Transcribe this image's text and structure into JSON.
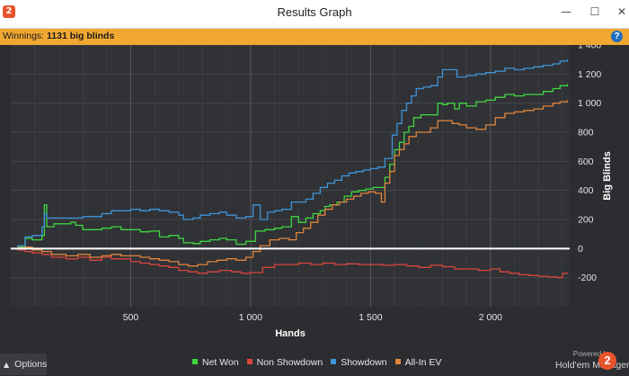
{
  "window": {
    "title": "Results Graph",
    "minimize": "—",
    "maximize": "☐",
    "close": "✕",
    "icon": "hm2-logo-icon",
    "icon_glyph": "2"
  },
  "winnings": {
    "label": "Winnings:",
    "value": "1131 big blinds",
    "help_glyph": "?"
  },
  "footer": {
    "options_label": "Options",
    "options_caret": "▲",
    "powered_by": "Powered by",
    "brand": "Hold'em Manager",
    "brand_glyph": "2"
  },
  "colors": {
    "background": "#2b2d30",
    "plot_background": "#303236",
    "winnings_bar": "#f1a832",
    "net_won": "#3fd63f",
    "non_showdown": "#d9453b",
    "showdown": "#3f94d9",
    "all_in_ev": "#e0843a",
    "zero_line": "#ffffff"
  },
  "chart_data": {
    "type": "line",
    "xlabel": "Hands",
    "ylabel": "Big Blinds",
    "xlim": [
      0,
      2330
    ],
    "ylim": [
      -400,
      1400
    ],
    "x_ticks": [
      500,
      1000,
      1500,
      2000
    ],
    "x_tick_labels": [
      "500",
      "1 000",
      "1 500",
      "2 000"
    ],
    "y_ticks": [
      -200,
      0,
      200,
      400,
      600,
      800,
      1000,
      1200,
      1400
    ],
    "y_tick_labels": [
      "-200",
      "0",
      "200",
      "400",
      "600",
      "800",
      "1 000",
      "1 200",
      "1 400"
    ],
    "grid": true,
    "legend_position": "bottom",
    "series": [
      {
        "name": "Net Won",
        "color": "#3fd63f",
        "points": [
          [
            0,
            0
          ],
          [
            30,
            10
          ],
          [
            60,
            70
          ],
          [
            90,
            60
          ],
          [
            130,
            90
          ],
          [
            140,
            300
          ],
          [
            150,
            150
          ],
          [
            180,
            170
          ],
          [
            250,
            180
          ],
          [
            270,
            160
          ],
          [
            300,
            130
          ],
          [
            330,
            130
          ],
          [
            380,
            140
          ],
          [
            420,
            150
          ],
          [
            460,
            130
          ],
          [
            500,
            130
          ],
          [
            540,
            115
          ],
          [
            580,
            120
          ],
          [
            620,
            80
          ],
          [
            660,
            90
          ],
          [
            700,
            70
          ],
          [
            720,
            40
          ],
          [
            760,
            35
          ],
          [
            790,
            50
          ],
          [
            830,
            60
          ],
          [
            870,
            70
          ],
          [
            900,
            60
          ],
          [
            940,
            30
          ],
          [
            980,
            50
          ],
          [
            1020,
            120
          ],
          [
            1060,
            130
          ],
          [
            1100,
            140
          ],
          [
            1130,
            150
          ],
          [
            1150,
            150
          ],
          [
            1170,
            220
          ],
          [
            1200,
            180
          ],
          [
            1230,
            210
          ],
          [
            1260,
            240
          ],
          [
            1290,
            260
          ],
          [
            1310,
            290
          ],
          [
            1330,
            300
          ],
          [
            1360,
            320
          ],
          [
            1390,
            360
          ],
          [
            1420,
            390
          ],
          [
            1450,
            400
          ],
          [
            1480,
            410
          ],
          [
            1510,
            420
          ],
          [
            1540,
            420
          ],
          [
            1560,
            490
          ],
          [
            1580,
            580
          ],
          [
            1600,
            680
          ],
          [
            1620,
            730
          ],
          [
            1640,
            800
          ],
          [
            1660,
            840
          ],
          [
            1680,
            900
          ],
          [
            1710,
            920
          ],
          [
            1740,
            920
          ],
          [
            1780,
            1000
          ],
          [
            1800,
            990
          ],
          [
            1820,
            1000
          ],
          [
            1850,
            960
          ],
          [
            1870,
            1000
          ],
          [
            1900,
            980
          ],
          [
            1940,
            1010
          ],
          [
            1980,
            1020
          ],
          [
            2020,
            1040
          ],
          [
            2060,
            1060
          ],
          [
            2100,
            1050
          ],
          [
            2140,
            1060
          ],
          [
            2180,
            1060
          ],
          [
            2220,
            1080
          ],
          [
            2260,
            1100
          ],
          [
            2290,
            1120
          ],
          [
            2320,
            1131
          ]
        ]
      },
      {
        "name": "Non Showdown",
        "color": "#d9453b",
        "points": [
          [
            0,
            0
          ],
          [
            30,
            -10
          ],
          [
            60,
            -20
          ],
          [
            90,
            -30
          ],
          [
            130,
            -40
          ],
          [
            170,
            -60
          ],
          [
            230,
            -70
          ],
          [
            280,
            -60
          ],
          [
            330,
            -80
          ],
          [
            380,
            -60
          ],
          [
            420,
            -70
          ],
          [
            460,
            -70
          ],
          [
            500,
            -90
          ],
          [
            540,
            -100
          ],
          [
            580,
            -110
          ],
          [
            620,
            -120
          ],
          [
            660,
            -130
          ],
          [
            700,
            -150
          ],
          [
            740,
            -160
          ],
          [
            780,
            -170
          ],
          [
            820,
            -160
          ],
          [
            870,
            -150
          ],
          [
            920,
            -160
          ],
          [
            960,
            -170
          ],
          [
            1000,
            -165
          ],
          [
            1050,
            -130
          ],
          [
            1100,
            -110
          ],
          [
            1150,
            -110
          ],
          [
            1200,
            -100
          ],
          [
            1250,
            -110
          ],
          [
            1300,
            -100
          ],
          [
            1350,
            -110
          ],
          [
            1400,
            -105
          ],
          [
            1450,
            -110
          ],
          [
            1500,
            -110
          ],
          [
            1550,
            -115
          ],
          [
            1600,
            -110
          ],
          [
            1650,
            -120
          ],
          [
            1700,
            -130
          ],
          [
            1750,
            -115
          ],
          [
            1800,
            -125
          ],
          [
            1850,
            -140
          ],
          [
            1900,
            -140
          ],
          [
            1950,
            -150
          ],
          [
            2000,
            -140
          ],
          [
            2040,
            -160
          ],
          [
            2080,
            -170
          ],
          [
            2120,
            -180
          ],
          [
            2160,
            -185
          ],
          [
            2200,
            -190
          ],
          [
            2240,
            -195
          ],
          [
            2280,
            -200
          ],
          [
            2300,
            -170
          ],
          [
            2320,
            -165
          ]
        ]
      },
      {
        "name": "Showdown",
        "color": "#3f94d9",
        "points": [
          [
            0,
            0
          ],
          [
            30,
            20
          ],
          [
            60,
            80
          ],
          [
            90,
            90
          ],
          [
            130,
            150
          ],
          [
            140,
            240
          ],
          [
            150,
            210
          ],
          [
            200,
            210
          ],
          [
            260,
            210
          ],
          [
            300,
            220
          ],
          [
            340,
            220
          ],
          [
            380,
            240
          ],
          [
            420,
            260
          ],
          [
            460,
            260
          ],
          [
            500,
            270
          ],
          [
            540,
            260
          ],
          [
            580,
            270
          ],
          [
            620,
            260
          ],
          [
            660,
            250
          ],
          [
            700,
            230
          ],
          [
            720,
            200
          ],
          [
            760,
            210
          ],
          [
            790,
            230
          ],
          [
            830,
            240
          ],
          [
            870,
            250
          ],
          [
            900,
            230
          ],
          [
            940,
            210
          ],
          [
            980,
            220
          ],
          [
            1010,
            300
          ],
          [
            1040,
            200
          ],
          [
            1070,
            250
          ],
          [
            1100,
            260
          ],
          [
            1130,
            270
          ],
          [
            1150,
            270
          ],
          [
            1170,
            320
          ],
          [
            1200,
            320
          ],
          [
            1230,
            340
          ],
          [
            1260,
            380
          ],
          [
            1290,
            420
          ],
          [
            1320,
            450
          ],
          [
            1350,
            470
          ],
          [
            1380,
            500
          ],
          [
            1410,
            520
          ],
          [
            1440,
            530
          ],
          [
            1470,
            540
          ],
          [
            1500,
            550
          ],
          [
            1530,
            560
          ],
          [
            1560,
            620
          ],
          [
            1590,
            780
          ],
          [
            1610,
            860
          ],
          [
            1630,
            950
          ],
          [
            1650,
            1000
          ],
          [
            1670,
            1050
          ],
          [
            1690,
            1100
          ],
          [
            1720,
            1110
          ],
          [
            1750,
            1120
          ],
          [
            1780,
            1180
          ],
          [
            1800,
            1230
          ],
          [
            1830,
            1230
          ],
          [
            1860,
            1180
          ],
          [
            1900,
            1190
          ],
          [
            1940,
            1200
          ],
          [
            1980,
            1210
          ],
          [
            2020,
            1220
          ],
          [
            2060,
            1240
          ],
          [
            2100,
            1230
          ],
          [
            2140,
            1240
          ],
          [
            2180,
            1250
          ],
          [
            2220,
            1260
          ],
          [
            2260,
            1270
          ],
          [
            2290,
            1290
          ],
          [
            2320,
            1300
          ]
        ]
      },
      {
        "name": "All-In EV",
        "color": "#e0843a",
        "points": [
          [
            0,
            0
          ],
          [
            30,
            5
          ],
          [
            60,
            10
          ],
          [
            90,
            -10
          ],
          [
            130,
            -20
          ],
          [
            170,
            -40
          ],
          [
            230,
            -50
          ],
          [
            280,
            -40
          ],
          [
            330,
            -60
          ],
          [
            380,
            -50
          ],
          [
            420,
            -40
          ],
          [
            460,
            -50
          ],
          [
            500,
            -50
          ],
          [
            540,
            -60
          ],
          [
            580,
            -70
          ],
          [
            620,
            -80
          ],
          [
            660,
            -90
          ],
          [
            700,
            -110
          ],
          [
            740,
            -120
          ],
          [
            780,
            -110
          ],
          [
            820,
            -90
          ],
          [
            860,
            -80
          ],
          [
            900,
            -70
          ],
          [
            940,
            -80
          ],
          [
            980,
            -60
          ],
          [
            1010,
            -20
          ],
          [
            1040,
            20
          ],
          [
            1080,
            60
          ],
          [
            1120,
            70
          ],
          [
            1160,
            60
          ],
          [
            1190,
            110
          ],
          [
            1220,
            140
          ],
          [
            1250,
            180
          ],
          [
            1280,
            230
          ],
          [
            1310,
            270
          ],
          [
            1340,
            300
          ],
          [
            1370,
            320
          ],
          [
            1400,
            340
          ],
          [
            1430,
            360
          ],
          [
            1460,
            380
          ],
          [
            1490,
            390
          ],
          [
            1520,
            380
          ],
          [
            1545,
            320
          ],
          [
            1560,
            450
          ],
          [
            1580,
            530
          ],
          [
            1600,
            640
          ],
          [
            1620,
            680
          ],
          [
            1640,
            720
          ],
          [
            1660,
            770
          ],
          [
            1690,
            800
          ],
          [
            1720,
            800
          ],
          [
            1750,
            830
          ],
          [
            1780,
            880
          ],
          [
            1810,
            880
          ],
          [
            1840,
            860
          ],
          [
            1870,
            850
          ],
          [
            1900,
            830
          ],
          [
            1940,
            820
          ],
          [
            1980,
            850
          ],
          [
            2020,
            900
          ],
          [
            2060,
            930
          ],
          [
            2100,
            940
          ],
          [
            2140,
            950
          ],
          [
            2180,
            960
          ],
          [
            2220,
            980
          ],
          [
            2260,
            1000
          ],
          [
            2290,
            1010
          ],
          [
            2320,
            1020
          ]
        ]
      }
    ]
  }
}
